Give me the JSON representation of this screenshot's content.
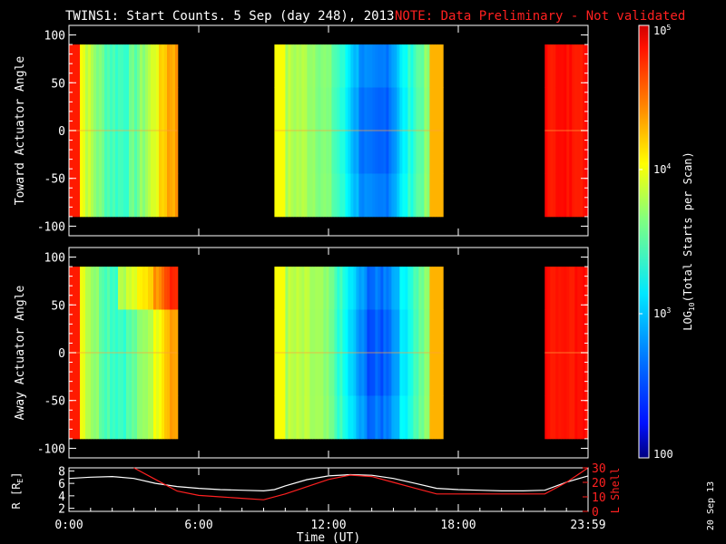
{
  "header": {
    "title": "TWINS1: Start Counts.  5 Sep (day 248), 2013",
    "note": "NOTE: Data Preliminary - Not validated"
  },
  "date_stamp": "20 Sep 13",
  "colors": {
    "background": "#000000",
    "axis": "#ffffff",
    "note": "#ff2020",
    "r_line": "#ffffff",
    "lshell_line": "#ff2020"
  },
  "chart_data": [
    {
      "type": "heatmap",
      "panel": "toward",
      "ylabel": "Toward Actuator Angle",
      "ylim": [
        -110,
        110
      ],
      "yticks": [
        "100",
        "50",
        "0",
        "-50",
        "-100"
      ],
      "x_range_hours": [
        0,
        24
      ],
      "data_angle_range": [
        -90,
        90
      ],
      "data_intervals_hours": [
        [
          0,
          5
        ],
        [
          9.5,
          17.2
        ],
        [
          22,
          24
        ]
      ]
    },
    {
      "type": "heatmap",
      "panel": "away",
      "ylabel": "Away Actuator Angle",
      "ylim": [
        -110,
        110
      ],
      "yticks": [
        "100",
        "50",
        "0",
        "-50",
        "-100"
      ],
      "x_range_hours": [
        0,
        24
      ],
      "data_angle_range": [
        -90,
        90
      ],
      "data_intervals_hours": [
        [
          0,
          5
        ],
        [
          9.5,
          17.2
        ],
        [
          22,
          24
        ]
      ]
    },
    {
      "type": "line",
      "panel": "orbit",
      "xlabel": "Time (UT)",
      "xticks": [
        "0:00",
        "6:00",
        "12:00",
        "18:00",
        "23:59"
      ],
      "ylabel_left": "R [RE]",
      "yticks_left": [
        "8",
        "6",
        "4",
        "2"
      ],
      "ylim_left": [
        1.5,
        8.5
      ],
      "ylabel_right": "L Shell",
      "yticks_right": [
        "30",
        "20",
        "10",
        "0"
      ],
      "ylim_right": [
        0,
        30
      ],
      "series": [
        {
          "axis": "left",
          "x": [
            0,
            1,
            2,
            3,
            4,
            5,
            6,
            7,
            8,
            9,
            9.5,
            10,
            11,
            12,
            13,
            14,
            15,
            16,
            17,
            18,
            19,
            20,
            21,
            22,
            23,
            24
          ],
          "y": [
            6.8,
            7.0,
            7.1,
            6.8,
            6.0,
            5.5,
            5.2,
            5.0,
            4.9,
            4.8,
            5.0,
            5.6,
            6.6,
            7.2,
            7.4,
            7.3,
            6.8,
            6.0,
            5.2,
            5.0,
            4.9,
            4.8,
            4.8,
            4.9,
            6.2,
            7.2
          ]
        },
        {
          "axis": "right",
          "x": [
            3,
            4,
            5,
            6,
            7,
            8,
            9,
            10,
            11,
            12,
            13,
            14,
            15,
            16,
            17,
            18,
            19,
            20,
            21,
            22,
            23,
            24
          ],
          "y": [
            30,
            22,
            14,
            11,
            10,
            9,
            8,
            12,
            17,
            22,
            25,
            24,
            20,
            16,
            12,
            12,
            12,
            12,
            12,
            12,
            20,
            30
          ]
        }
      ]
    }
  ],
  "colorbar": {
    "label": "LOG10(Total Starts per Scan)",
    "ticks": [
      "105",
      "104",
      "103",
      "100"
    ],
    "range_log10": [
      2,
      5
    ]
  }
}
